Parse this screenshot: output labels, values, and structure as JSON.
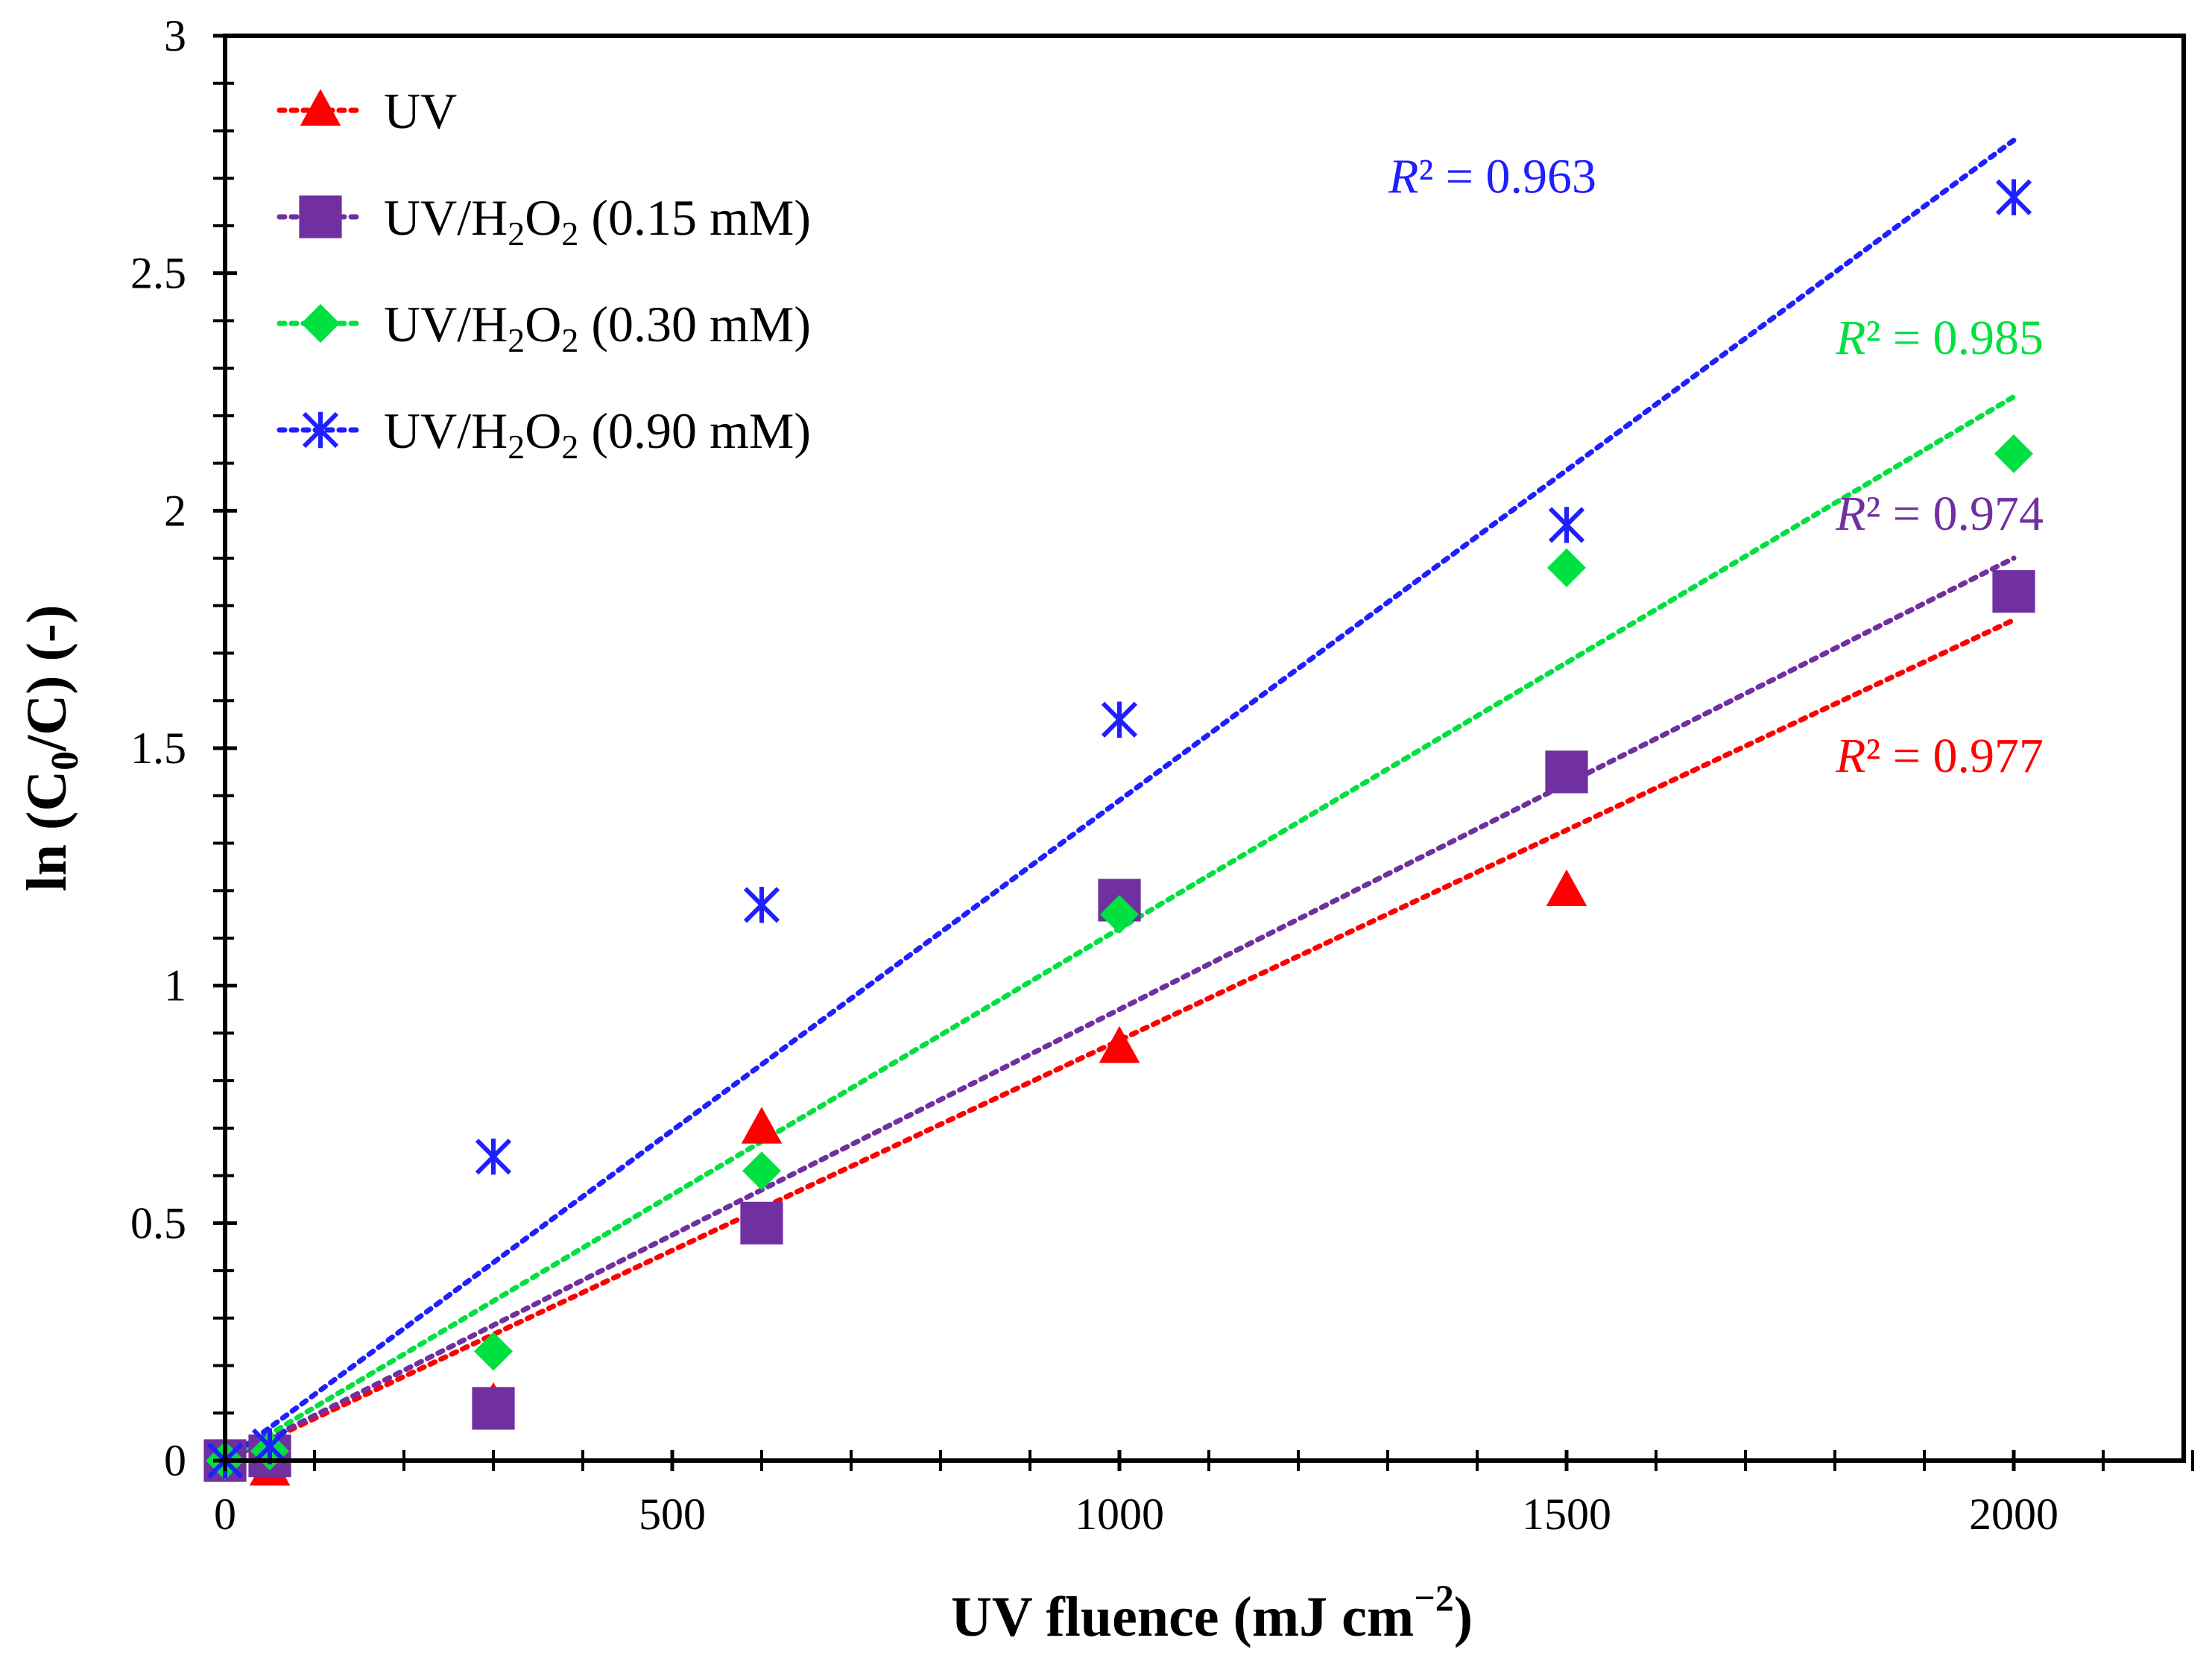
{
  "chart_data": {
    "type": "scatter",
    "title": "",
    "xlabel": "UV fluence (mJ cm",
    "xlabel_sup": "−2",
    "xlabel_close": ")",
    "ylabel": "ln (C",
    "ylabel_sub": "0",
    "ylabel_close": "/C) (-)",
    "xlim": [
      0,
      2200
    ],
    "ylim": [
      0,
      3
    ],
    "x_ticks": [
      0,
      500,
      1000,
      1500,
      2000
    ],
    "x_tick_labels": [
      "0",
      "500",
      "1000",
      "1500",
      "2000"
    ],
    "x_minor_step": 100,
    "y_ticks": [
      0,
      0.5,
      1,
      1.5,
      2,
      2.5,
      3
    ],
    "y_tick_labels": [
      "0",
      "0.5",
      "1",
      "1.5",
      "2",
      "2.5",
      "3"
    ],
    "y_minor_step": 0.1,
    "legend_position": "top-left",
    "series": [
      {
        "name": "UV",
        "label_main": "UV",
        "label_sub": "",
        "label_tail": "",
        "marker": "triangle",
        "color": "#ff0000",
        "x": [
          0,
          50,
          300,
          600,
          1000,
          1500,
          2000
        ],
        "y": [
          0,
          -0.02,
          0.12,
          0.7,
          0.87,
          1.2,
          1.83
        ],
        "trend": {
          "x0": 0,
          "y0": 0,
          "x1": 2000,
          "y1": 1.77
        },
        "r2_prefix": "R",
        "r2_suffix": "² = 0.977",
        "r2_anchor": {
          "x": 2000,
          "y": 1.45
        }
      },
      {
        "name": "UV/H2O2 (0.15 mM)",
        "label_main": "UV/H",
        "label_sub": "2",
        "label_mid": "O",
        "label_sub2": "2",
        "label_tail": " (0.15 mM)",
        "marker": "square",
        "color": "#7030a0",
        "x": [
          0,
          50,
          300,
          600,
          1000,
          1500,
          2000
        ],
        "y": [
          0,
          0.01,
          0.11,
          0.5,
          1.18,
          1.45,
          1.83
        ],
        "trend": {
          "x0": 0,
          "y0": 0,
          "x1": 2000,
          "y1": 1.9
        },
        "r2_prefix": "R",
        "r2_suffix": "² = 0.974",
        "r2_anchor": {
          "x": 2000,
          "y": 1.96
        }
      },
      {
        "name": "UV/H2O2 (0.30 mM)",
        "label_main": "UV/H",
        "label_sub": "2",
        "label_mid": "O",
        "label_sub2": "2",
        "label_tail": " (0.30 mM)",
        "marker": "diamond",
        "color": "#00e040",
        "x": [
          0,
          50,
          300,
          600,
          1000,
          1500,
          2000
        ],
        "y": [
          0,
          0.02,
          0.23,
          0.61,
          1.15,
          1.88,
          2.12
        ],
        "trend": {
          "x0": 0,
          "y0": 0,
          "x1": 2000,
          "y1": 2.24
        },
        "r2_prefix": "R",
        "r2_suffix": "² = 0.985",
        "r2_anchor": {
          "x": 2000,
          "y": 2.33
        }
      },
      {
        "name": "UV/H2O2 (0.90 mM)",
        "label_main": "UV/H",
        "label_sub": "2",
        "label_mid": "O",
        "label_sub2": "2",
        "label_tail": " (0.90 mM)",
        "marker": "asterisk",
        "color": "#1f1fff",
        "x": [
          0,
          50,
          300,
          600,
          1000,
          1500,
          2000
        ],
        "y": [
          0,
          0.03,
          0.64,
          1.17,
          1.56,
          1.97,
          2.66
        ],
        "trend": {
          "x0": 0,
          "y0": 0,
          "x1": 2000,
          "y1": 2.78
        },
        "r2_prefix": "R",
        "r2_suffix": "² = 0.963",
        "r2_anchor": {
          "x": 1500,
          "y": 2.67
        }
      }
    ]
  }
}
